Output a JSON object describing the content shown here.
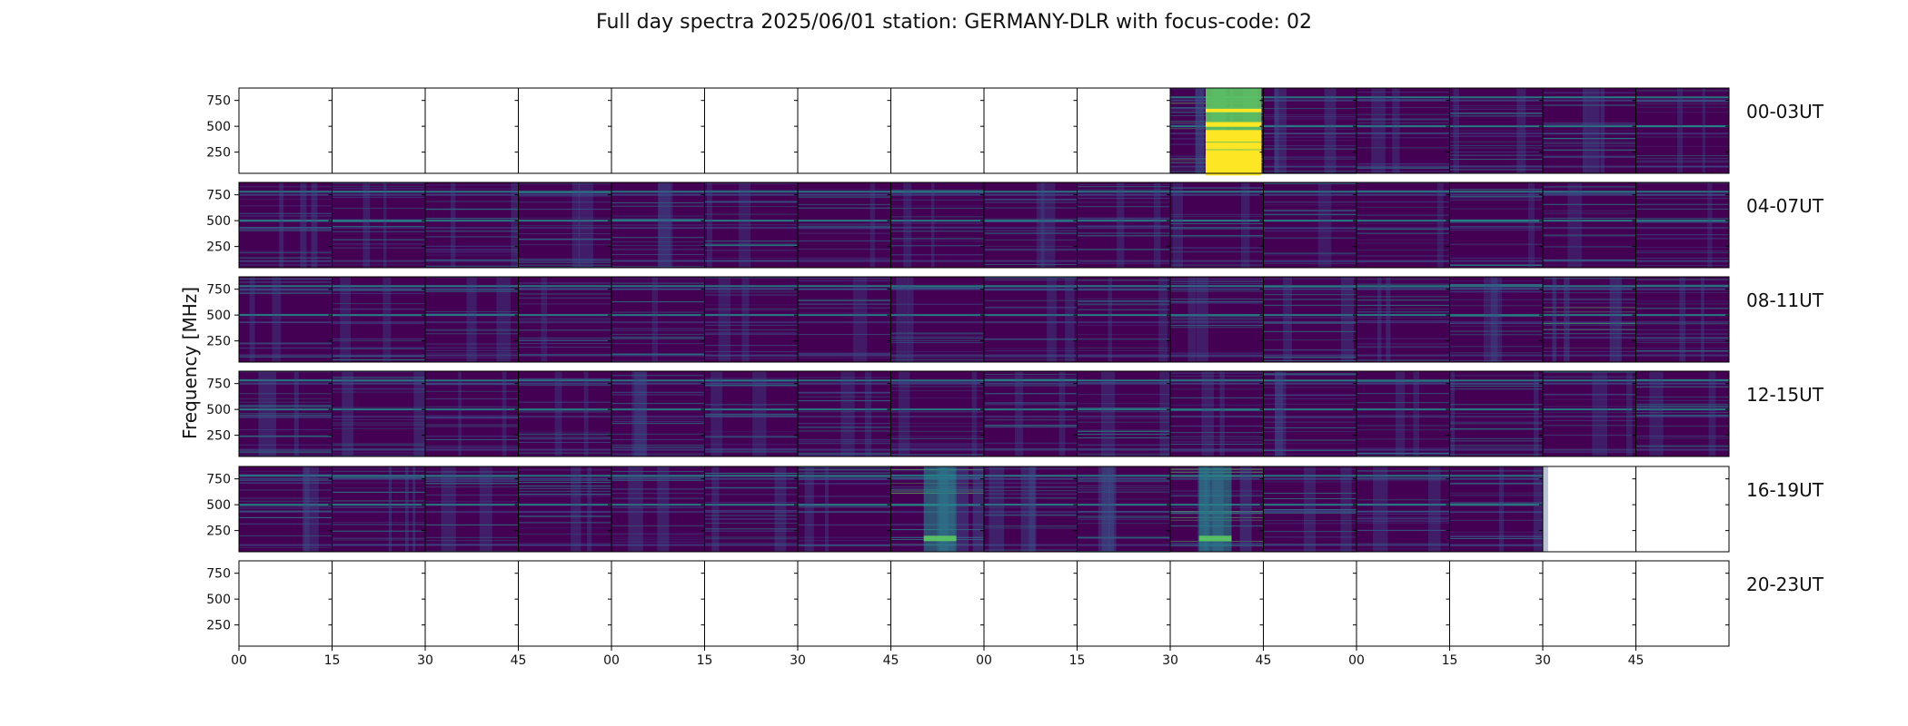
{
  "title": "Full day spectra 2025/06/01 station: GERMANY-DLR with focus-code: 02",
  "ylabel": "Frequency [MHz]",
  "y_tick_labels": [
    "750",
    "500",
    "250"
  ],
  "x_tick_labels": [
    "00",
    "15",
    "30",
    "45",
    "00",
    "15",
    "30",
    "45",
    "00",
    "15",
    "30",
    "45",
    "00",
    "15",
    "30",
    "45"
  ],
  "row_labels": [
    "00-03UT",
    "04-07UT",
    "08-11UT",
    "12-15UT",
    "16-19UT",
    "20-23UT"
  ],
  "colors": {
    "background_dark": "#440154",
    "band_mid": "#3b528b",
    "band_teal": "#21918c",
    "band_green": "#5ec962",
    "band_bright": "#fde725"
  },
  "chart_data": {
    "type": "heatmap",
    "colormap": "viridis",
    "rows": 6,
    "panels_per_row": 16,
    "panel_minutes": 15,
    "y_range_mhz": [
      45,
      870
    ],
    "y_ticks": [
      250,
      500,
      750
    ],
    "x_ticks_minutes": [
      0,
      15,
      30,
      45
    ],
    "presence": [
      [
        0,
        0,
        0,
        0,
        0,
        0,
        0,
        0,
        0,
        0,
        1,
        1,
        1,
        1,
        1,
        1
      ],
      [
        1,
        1,
        1,
        1,
        1,
        1,
        1,
        1,
        1,
        1,
        1,
        1,
        1,
        1,
        1,
        1
      ],
      [
        1,
        1,
        1,
        1,
        1,
        1,
        1,
        1,
        1,
        1,
        1,
        1,
        1,
        1,
        1,
        1
      ],
      [
        1,
        1,
        1,
        1,
        1,
        1,
        1,
        1,
        1,
        1,
        1,
        1,
        1,
        1,
        1,
        1
      ],
      [
        1,
        1,
        1,
        1,
        1,
        1,
        1,
        1,
        1,
        1,
        1,
        1,
        1,
        1,
        0,
        0
      ],
      [
        0,
        0,
        0,
        0,
        0,
        0,
        0,
        0,
        0,
        0,
        0,
        0,
        0,
        0,
        0,
        0
      ]
    ],
    "intensity": [
      [
        0,
        0,
        0,
        0,
        0,
        0,
        0,
        0,
        0,
        0,
        0.9,
        0.35,
        0.25,
        0.25,
        0.35,
        0.2
      ],
      [
        0.35,
        0.25,
        0.25,
        0.25,
        0.2,
        0.2,
        0.15,
        0.2,
        0.2,
        0.2,
        0.2,
        0.15,
        0.15,
        0.15,
        0.15,
        0.15
      ],
      [
        0.2,
        0.2,
        0.2,
        0.15,
        0.15,
        0.2,
        0.15,
        0.2,
        0.2,
        0.2,
        0.25,
        0.3,
        0.3,
        0.2,
        0.45,
        0.3
      ],
      [
        0.35,
        0.3,
        0.2,
        0.2,
        0.2,
        0.2,
        0.2,
        0.2,
        0.2,
        0.25,
        0.25,
        0.25,
        0.2,
        0.25,
        0.2,
        0.2
      ],
      [
        0.3,
        0.4,
        0.25,
        0.3,
        0.3,
        0.3,
        0.25,
        0.55,
        0.35,
        0.4,
        0.5,
        0.25,
        0.25,
        0.25,
        0,
        0
      ],
      [
        0,
        0,
        0,
        0,
        0,
        0,
        0,
        0,
        0,
        0,
        0,
        0,
        0,
        0,
        0,
        0
      ]
    ],
    "grid": false
  }
}
